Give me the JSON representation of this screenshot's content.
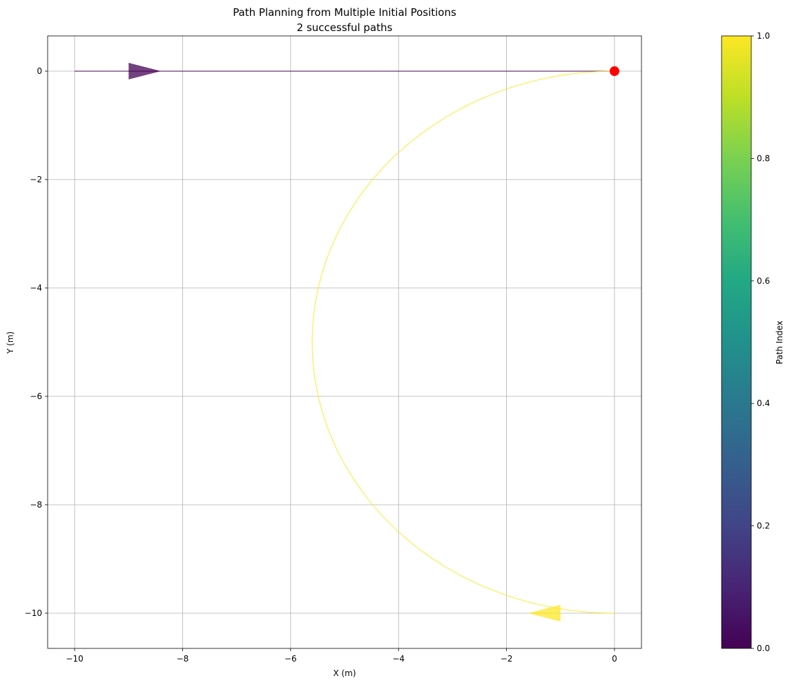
{
  "chart_data": {
    "type": "line",
    "title": "Path Planning from Multiple Initial Positions",
    "subtitle": "2 successful paths",
    "xlabel": "X (m)",
    "ylabel": "Y (m)",
    "xlim": [
      -10.5,
      0.5
    ],
    "ylim": [
      -10.65,
      0.65
    ],
    "grid": true,
    "x_ticks": [
      -10,
      -8,
      -6,
      -4,
      -2,
      0
    ],
    "y_ticks": [
      0,
      -2,
      -4,
      -6,
      -8,
      -10
    ],
    "goal": {
      "x": 0,
      "y": 0,
      "color": "#ff0000"
    },
    "series": [
      {
        "color": "#440154",
        "start": [
          -10,
          0
        ],
        "arrow_from": [
          -9.0,
          0
        ],
        "arrow_to": [
          -8.4,
          0
        ],
        "points": [
          [
            -10,
            0
          ],
          [
            0,
            0
          ]
        ]
      },
      {
        "color": "#fde725",
        "start": [
          0,
          -10
        ],
        "arrow_from": [
          -1.0,
          -10
        ],
        "arrow_to": [
          -1.6,
          -10
        ],
        "arc": {
          "cx": 0,
          "cy": -5,
          "r": 5,
          "start_deg": 270,
          "end_deg": 90,
          "x_scale": 1.12
        }
      }
    ],
    "colorbar": {
      "label": "Path Index",
      "range": [
        0.0,
        1.0
      ],
      "ticks": [
        "0.0",
        "0.2",
        "0.4",
        "0.6",
        "0.8",
        "1.0"
      ],
      "colormap": "viridis"
    }
  }
}
